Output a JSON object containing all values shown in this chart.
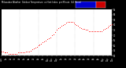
{
  "title": "Milwaukee Weather  Outdoor Temperature  vs Heat Index  per Minute  (24 Hours)",
  "bg_color": "#000000",
  "plot_bg_color": "#ffffff",
  "dot_color": "#ff0000",
  "dot_size": 0.4,
  "legend_blue": "#0000cc",
  "legend_red": "#cc0000",
  "xlim": [
    0,
    1440
  ],
  "ylim": [
    50,
    95
  ],
  "yticks": [
    50,
    55,
    60,
    65,
    70,
    75,
    80,
    85,
    90,
    95
  ],
  "xtick_positions": [
    0,
    60,
    120,
    180,
    240,
    300,
    360,
    420,
    480,
    540,
    600,
    660,
    720,
    780,
    840,
    900,
    960,
    1020,
    1080,
    1140,
    1200,
    1260,
    1320,
    1380,
    1440
  ],
  "xtick_labels": [
    "12a",
    "1a",
    "2a",
    "3a",
    "4a",
    "5a",
    "6a",
    "7a",
    "8a",
    "9a",
    "10a",
    "11a",
    "12p",
    "1p",
    "2p",
    "3p",
    "4p",
    "5p",
    "6p",
    "7p",
    "8p",
    "9p",
    "10p",
    "11p",
    "12a"
  ],
  "grid_color": "#aaaaaa",
  "grid_positions": [
    240,
    480,
    720,
    960,
    1200
  ],
  "data_x": [
    0,
    20,
    40,
    60,
    80,
    100,
    120,
    140,
    160,
    180,
    200,
    220,
    240,
    260,
    280,
    300,
    320,
    340,
    360,
    380,
    400,
    420,
    440,
    460,
    480,
    500,
    520,
    540,
    560,
    580,
    600,
    620,
    640,
    660,
    680,
    700,
    720,
    740,
    760,
    780,
    800,
    820,
    840,
    860,
    880,
    900,
    920,
    940,
    960,
    980,
    1000,
    1020,
    1040,
    1060,
    1080,
    1100,
    1120,
    1140,
    1160,
    1180,
    1200,
    1220,
    1240,
    1260,
    1280,
    1300,
    1320,
    1340,
    1360,
    1380,
    1400,
    1420,
    1440
  ],
  "data_y": [
    54,
    54,
    53,
    53,
    53,
    52,
    52,
    52,
    52,
    52,
    52,
    53,
    53,
    53,
    53,
    53,
    54,
    54,
    54,
    55,
    56,
    57,
    58,
    59,
    60,
    61,
    62,
    63,
    64,
    65,
    66,
    67,
    68,
    70,
    71,
    73,
    75,
    77,
    78,
    79,
    80,
    81,
    82,
    83,
    83,
    83,
    83,
    82,
    81,
    80,
    79,
    78,
    77,
    76,
    76,
    75,
    75,
    74,
    74,
    74,
    74,
    74,
    74,
    74,
    74,
    74,
    75,
    76,
    77,
    78,
    79,
    80,
    81
  ]
}
